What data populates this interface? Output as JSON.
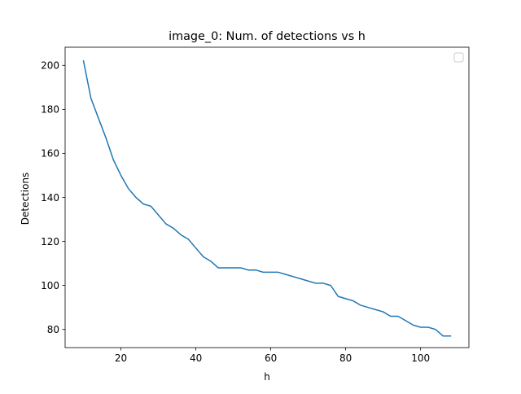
{
  "chart_data": {
    "type": "line",
    "title": "image_0: Num. of detections vs h",
    "xlabel": "h",
    "ylabel": "Detections",
    "xlim": [
      5.1,
      112.9
    ],
    "ylim": [
      71.75,
      208.25
    ],
    "xticks": [
      20,
      40,
      60,
      80,
      100
    ],
    "yticks": [
      80,
      100,
      120,
      140,
      160,
      180,
      200
    ],
    "grid": false,
    "legend": {
      "placement": "top-right",
      "entries": []
    },
    "series": [
      {
        "color": "#1f77b4",
        "x": [
          10,
          12,
          14,
          16,
          18,
          20,
          22,
          24,
          26,
          28,
          30,
          32,
          34,
          36,
          38,
          40,
          42,
          44,
          46,
          48,
          50,
          52,
          54,
          56,
          58,
          60,
          62,
          64,
          66,
          68,
          70,
          72,
          74,
          76,
          78,
          80,
          82,
          84,
          86,
          88,
          90,
          92,
          94,
          96,
          98,
          100,
          102,
          104,
          106,
          108
        ],
        "y": [
          202,
          185,
          176,
          167,
          157,
          150,
          144,
          140,
          137,
          136,
          132,
          128,
          126,
          123,
          121,
          117,
          113,
          111,
          108,
          108,
          108,
          108,
          107,
          107,
          106,
          106,
          106,
          105,
          104,
          103,
          102,
          101,
          101,
          100,
          95,
          94,
          93,
          91,
          90,
          89,
          88,
          86,
          86,
          84,
          82,
          81,
          81,
          80,
          77,
          77
        ]
      }
    ]
  }
}
